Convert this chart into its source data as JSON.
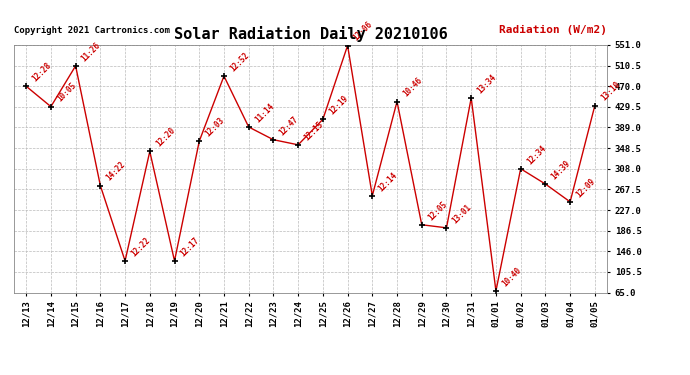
{
  "title": "Solar Radiation Daily 20210106",
  "copyright": "Copyright 2021 Cartronics.com",
  "ylabel": "Radiation (W/m2)",
  "categories": [
    "12/13",
    "12/14",
    "12/15",
    "12/16",
    "12/17",
    "12/18",
    "12/19",
    "12/20",
    "12/21",
    "12/22",
    "12/23",
    "12/24",
    "12/25",
    "12/26",
    "12/27",
    "12/28",
    "12/29",
    "12/30",
    "12/31",
    "01/01",
    "01/02",
    "01/03",
    "01/04",
    "01/05"
  ],
  "values": [
    470,
    430,
    510,
    275,
    127,
    342,
    127,
    362,
    490,
    390,
    365,
    355,
    405,
    550,
    255,
    440,
    198,
    192,
    447,
    68,
    308,
    278,
    243,
    432
  ],
  "labels": [
    "12:28",
    "10:05",
    "11:26",
    "14:22",
    "12:22",
    "12:20",
    "12:17",
    "12:03",
    "12:52",
    "11:14",
    "12:47",
    "12:15",
    "12:19",
    "12:06",
    "12:14",
    "10:46",
    "12:05",
    "13:01",
    "13:34",
    "10:40",
    "12:34",
    "14:39",
    "12:09",
    "13:10"
  ],
  "line_color": "#cc0000",
  "marker_color": "#000000",
  "background_color": "#ffffff",
  "grid_color": "#bbbbbb",
  "title_color": "#000000",
  "ylabel_color": "#cc0000",
  "copyright_color": "#000000",
  "label_color": "#cc0000",
  "ylim": [
    65.0,
    551.0
  ],
  "yticks": [
    65.0,
    105.5,
    146.0,
    186.5,
    227.0,
    267.5,
    308.0,
    348.5,
    389.0,
    429.5,
    470.0,
    510.5,
    551.0
  ]
}
